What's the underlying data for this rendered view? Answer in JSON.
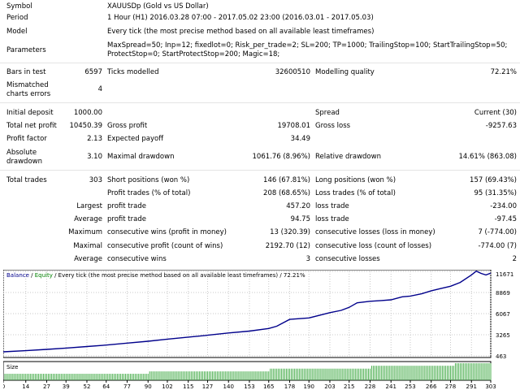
{
  "header": {
    "symbol_label": "Symbol",
    "symbol_value": "XAUUSDp (Gold vs US Dollar)",
    "period_label": "Period",
    "period_value": "1 Hour (H1) 2016.03.28 07:00 - 2017.05.02 23:00 (2016.03.01 - 2017.05.03)",
    "model_label": "Model",
    "model_value": "Every tick (the most precise method based on all available least timeframes)",
    "params_label": "Parameters",
    "params_line1": "MaxSpread=50; Inp=12; fixedlot=0; Risk_per_trade=2; SL=200; TP=1000; TrailingStop=100; StartTrailingStop=50;",
    "params_line2": "ProtectStop=0; StartProtectStop=200; Magic=18;"
  },
  "bars": {
    "bars_label": "Bars in test",
    "bars_value": "6597",
    "ticks_label": "Ticks modelled",
    "ticks_value": "32600510",
    "quality_label": "Modelling quality",
    "quality_value": "72.21%",
    "mismatch_label1": "Mismatched",
    "mismatch_label2": "charts errors",
    "mismatch_value": "4"
  },
  "results": {
    "initial_deposit_label": "Initial deposit",
    "initial_deposit_value": "1000.00",
    "spread_label": "Spread",
    "spread_value": "Current (30)",
    "net_profit_label": "Total net profit",
    "net_profit_value": "10450.39",
    "gross_profit_label": "Gross profit",
    "gross_profit_value": "19708.01",
    "gross_loss_label": "Gross loss",
    "gross_loss_value": "-9257.63",
    "profit_factor_label": "Profit factor",
    "profit_factor_value": "2.13",
    "expected_payoff_label": "Expected payoff",
    "expected_payoff_value": "34.49",
    "abs_dd_label1": "Absolute",
    "abs_dd_label2": "drawdown",
    "abs_dd_value": "3.10",
    "max_dd_label": "Maximal drawdown",
    "max_dd_value": "1061.76 (8.96%)",
    "rel_dd_label": "Relative drawdown",
    "rel_dd_value": "14.61% (863.08)",
    "total_trades_label": "Total trades",
    "total_trades_value": "303",
    "short_label": "Short positions (won %)",
    "short_value": "146 (67.81%)",
    "long_label": "Long positions (won %)",
    "long_value": "157 (69.43%)",
    "profit_trades_label": "Profit trades (% of total)",
    "profit_trades_value": "208 (68.65%)",
    "loss_trades_label": "Loss trades (% of total)",
    "loss_trades_value": "95 (31.35%)",
    "largest_label": "Largest",
    "largest_profit_label": "profit trade",
    "largest_profit_value": "457.20",
    "largest_loss_label": "loss trade",
    "largest_loss_value": "-234.00",
    "average_label": "Average",
    "average_profit_label": "profit trade",
    "average_profit_value": "94.75",
    "average_loss_label": "loss trade",
    "average_loss_value": "-97.45",
    "maximum_label": "Maximum",
    "max_wins_label": "consecutive wins (profit in money)",
    "max_wins_value": "13 (320.39)",
    "max_losses_label": "consecutive losses (loss in money)",
    "max_losses_value": "7 (-774.00)",
    "maximal_label": "Maximal",
    "maximal_profit_label": "consecutive profit (count of wins)",
    "maximal_profit_value": "2192.70 (12)",
    "maximal_loss_label": "consecutive loss (count of losses)",
    "maximal_loss_value": "-774.00 (7)",
    "avg_consec_label": "Average",
    "avg_wins_label": "consecutive wins",
    "avg_wins_value": "3",
    "avg_losses_label": "consecutive losses",
    "avg_losses_value": "2"
  },
  "chart_data": {
    "type": "line",
    "legend_balance": "Balance",
    "legend_slash": " / ",
    "legend_equity": "Equity",
    "legend_rest": " / Every tick (the most precise method based on all available least timeframes) / 72.21%",
    "y_ticks": [
      "11671",
      "8869",
      "6067",
      "3265",
      "463"
    ],
    "ylim": [
      463,
      11671
    ],
    "x_ticks": [
      "0",
      "14",
      "27",
      "39",
      "52",
      "64",
      "77",
      "90",
      "102",
      "115",
      "127",
      "140",
      "153",
      "165",
      "178",
      "190",
      "203",
      "215",
      "228",
      "241",
      "253",
      "266",
      "278",
      "291",
      "303"
    ],
    "xlim": [
      0,
      303
    ],
    "size_label": "Size",
    "colors": {
      "balance": "#00008b",
      "equity": "#008000",
      "size": "#4caf50",
      "grid": "#c8c8c8"
    },
    "series": [
      {
        "name": "Balance",
        "x": [
          0,
          14,
          27,
          39,
          52,
          64,
          77,
          90,
          102,
          115,
          127,
          140,
          153,
          165,
          170,
          178,
          190,
          203,
          210,
          215,
          220,
          228,
          235,
          241,
          248,
          253,
          260,
          266,
          272,
          278,
          284,
          291,
          294,
          297,
          300,
          303
        ],
        "values": [
          1000,
          1150,
          1320,
          1500,
          1700,
          1900,
          2150,
          2400,
          2680,
          2950,
          3200,
          3500,
          3750,
          4100,
          4400,
          5300,
          5500,
          6200,
          6500,
          6900,
          7500,
          7700,
          7800,
          7900,
          8300,
          8400,
          8700,
          9100,
          9400,
          9700,
          10200,
          11200,
          11700,
          11400,
          11200,
          11450
        ]
      }
    ],
    "size_bars": [
      {
        "to": 90,
        "value": 0.38
      },
      {
        "to": 165,
        "value": 0.52
      },
      {
        "to": 228,
        "value": 0.68
      },
      {
        "to": 280,
        "value": 0.85
      },
      {
        "to": 303,
        "value": 1.0
      }
    ]
  }
}
